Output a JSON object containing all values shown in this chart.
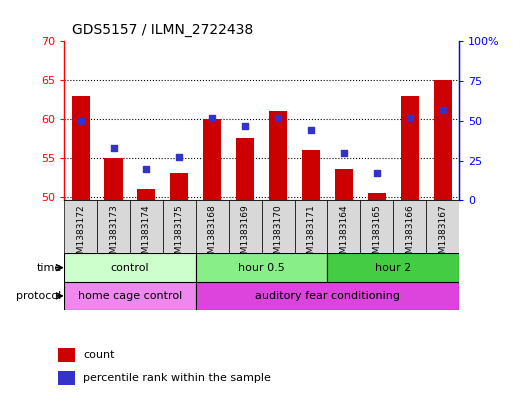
{
  "title": "GDS5157 / ILMN_2722438",
  "samples": [
    "GSM1383172",
    "GSM1383173",
    "GSM1383174",
    "GSM1383175",
    "GSM1383168",
    "GSM1383169",
    "GSM1383170",
    "GSM1383171",
    "GSM1383164",
    "GSM1383165",
    "GSM1383166",
    "GSM1383167"
  ],
  "bar_values": [
    63,
    55,
    51,
    53,
    60,
    57.5,
    61,
    56,
    53.5,
    50.5,
    63,
    65
  ],
  "percentile_dots": [
    50,
    33,
    20,
    27,
    52,
    47,
    52,
    44,
    30,
    17,
    52,
    57
  ],
  "ylim_left": [
    49.5,
    70
  ],
  "ylim_right": [
    0,
    100
  ],
  "yticks_left": [
    50,
    55,
    60,
    65,
    70
  ],
  "yticks_right": [
    0,
    25,
    50,
    75,
    100
  ],
  "ytick_labels_left": [
    "50",
    "55",
    "60",
    "65",
    "70"
  ],
  "ytick_labels_right": [
    "0",
    "25",
    "50",
    "75",
    "100%"
  ],
  "bar_color": "#cc0000",
  "dot_color": "#3333cc",
  "bar_bottom": 49.5,
  "time_groups": [
    {
      "label": "control",
      "start": 0,
      "end": 4,
      "color": "#ccffcc"
    },
    {
      "label": "hour 0.5",
      "start": 4,
      "end": 8,
      "color": "#88ee88"
    },
    {
      "label": "hour 2",
      "start": 8,
      "end": 12,
      "color": "#44cc44"
    }
  ],
  "protocol_groups": [
    {
      "label": "home cage control",
      "start": 0,
      "end": 4,
      "color": "#ee88ee"
    },
    {
      "label": "auditory fear conditioning",
      "start": 4,
      "end": 12,
      "color": "#dd44dd"
    }
  ],
  "legend_items": [
    {
      "color": "#cc0000",
      "label": "count"
    },
    {
      "color": "#3333cc",
      "label": "percentile rank within the sample"
    }
  ],
  "title_fontsize": 10,
  "tick_fontsize": 8,
  "bar_width": 0.55,
  "label_fontsize": 7.5,
  "sample_fontsize": 6.5,
  "group_fontsize": 8
}
